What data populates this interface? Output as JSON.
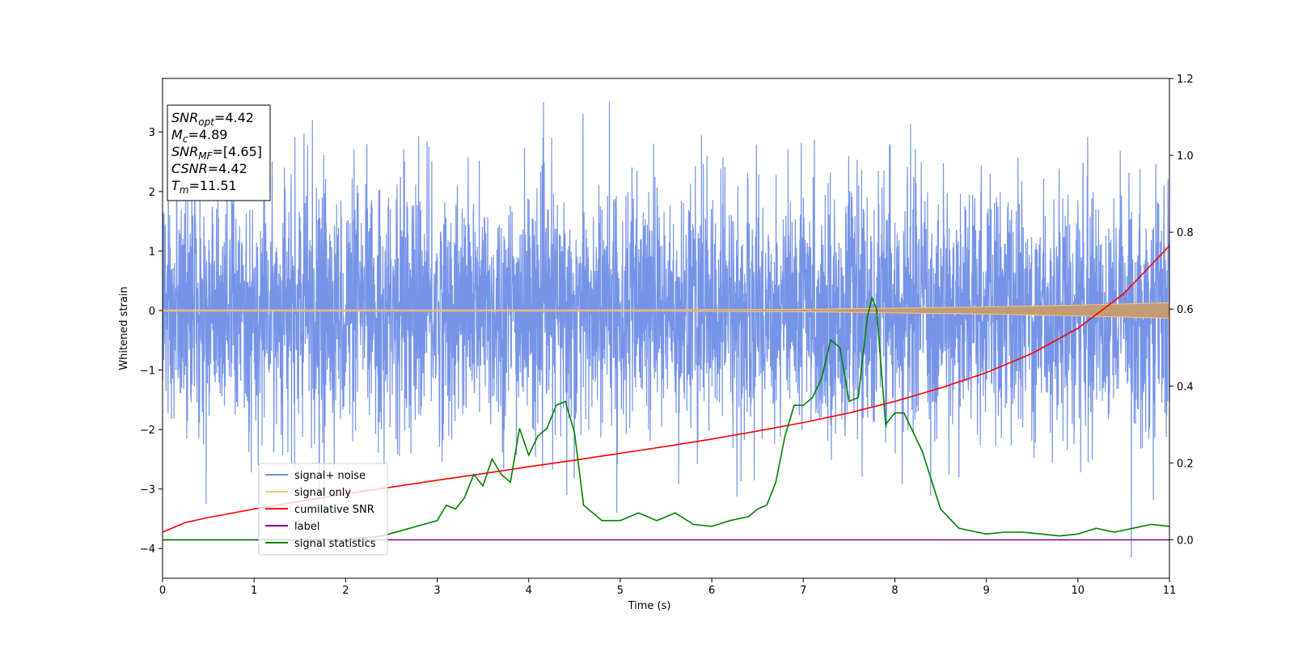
{
  "chart_data": {
    "type": "line",
    "xlabel": "Time (s)",
    "ylabel": "Whitened strain",
    "xlim": [
      0,
      11
    ],
    "ylim": [
      -4.5,
      3.9
    ],
    "y2lim": [
      -0.1,
      1.2
    ],
    "grid": false,
    "x_ticks": [
      "0",
      "1",
      "2",
      "3",
      "4",
      "5",
      "6",
      "7",
      "8",
      "9",
      "10",
      "11"
    ],
    "y_ticks": [
      "3",
      "2",
      "1",
      "0",
      "−1",
      "−2",
      "−3",
      "−4"
    ],
    "y2_ticks": [
      "1.2",
      "1.0",
      "0.8",
      "0.6",
      "0.4",
      "0.2",
      "0.0"
    ],
    "legend_position": "lower-left",
    "legend": [
      {
        "label": "signal+ noise",
        "color": "#6f8ee6"
      },
      {
        "label": "signal only",
        "color": "#f5c77e"
      },
      {
        "label": "cumilative SNR",
        "color": "#ff0000"
      },
      {
        "label": "label",
        "color": "#800080"
      },
      {
        "label": "signal statistics",
        "color": "#008000"
      }
    ],
    "info_box": [
      {
        "main": "SNR",
        "sub": "opt",
        "value": "=4.42"
      },
      {
        "main": "M",
        "sub": "c",
        "value": "=4.89"
      },
      {
        "main": "SNR",
        "sub": "MF",
        "value": "=[4.65]"
      },
      {
        "main": "CSNR",
        "sub": "",
        "value": "=4.42"
      },
      {
        "main": "T",
        "sub": "m",
        "value": "=11.51"
      }
    ],
    "series": [
      {
        "name": "signal+ noise",
        "axis": "left",
        "color": "#6f8ee6",
        "noise_band": {
          "mean": 0.0,
          "typical_abs": 1.6,
          "max": 3.5,
          "min": -4.15
        }
      },
      {
        "name": "signal only",
        "axis": "left",
        "color": "#f5c77e",
        "envelope": {
          "x": [
            0,
            5,
            7,
            8,
            9,
            10,
            11
          ],
          "amp": [
            0.01,
            0.01,
            0.02,
            0.04,
            0.06,
            0.09,
            0.13
          ]
        }
      },
      {
        "name": "cumilative SNR",
        "axis": "right",
        "color": "#ff0000",
        "x": [
          0,
          0.25,
          0.5,
          1,
          1.5,
          2,
          2.5,
          3,
          3.5,
          4,
          4.5,
          5,
          5.5,
          6,
          6.5,
          7,
          7.5,
          8,
          8.5,
          9,
          9.5,
          10,
          10.5,
          11
        ],
        "y": [
          0.02,
          0.045,
          0.058,
          0.08,
          0.1,
          0.12,
          0.137,
          0.155,
          0.172,
          0.19,
          0.207,
          0.225,
          0.243,
          0.262,
          0.283,
          0.305,
          0.33,
          0.36,
          0.395,
          0.435,
          0.485,
          0.55,
          0.64,
          0.765
        ]
      },
      {
        "name": "label",
        "axis": "right",
        "color": "#800080",
        "x": [
          0,
          11
        ],
        "y": [
          0.0,
          0.0
        ]
      },
      {
        "name": "signal statistics",
        "axis": "right",
        "color": "#008000",
        "x": [
          0,
          1,
          2,
          2.4,
          2.7,
          3.0,
          3.1,
          3.2,
          3.3,
          3.4,
          3.5,
          3.6,
          3.7,
          3.8,
          3.9,
          4.0,
          4.1,
          4.2,
          4.3,
          4.4,
          4.5,
          4.6,
          4.7,
          4.8,
          5.0,
          5.2,
          5.4,
          5.6,
          5.8,
          6.0,
          6.2,
          6.4,
          6.5,
          6.6,
          6.7,
          6.8,
          6.9,
          7.0,
          7.1,
          7.2,
          7.3,
          7.4,
          7.5,
          7.6,
          7.7,
          7.75,
          7.8,
          7.85,
          7.9,
          8.0,
          8.1,
          8.2,
          8.3,
          8.5,
          8.7,
          8.9,
          9.0,
          9.2,
          9.4,
          9.6,
          9.8,
          10.0,
          10.2,
          10.4,
          10.6,
          10.8,
          11.0
        ],
        "y": [
          0.0,
          0.0,
          0.0,
          0.01,
          0.03,
          0.05,
          0.09,
          0.08,
          0.11,
          0.17,
          0.14,
          0.21,
          0.17,
          0.15,
          0.29,
          0.22,
          0.27,
          0.29,
          0.35,
          0.36,
          0.28,
          0.09,
          0.07,
          0.05,
          0.05,
          0.07,
          0.05,
          0.07,
          0.04,
          0.035,
          0.05,
          0.06,
          0.08,
          0.09,
          0.15,
          0.27,
          0.35,
          0.35,
          0.37,
          0.42,
          0.52,
          0.5,
          0.36,
          0.37,
          0.58,
          0.63,
          0.6,
          0.45,
          0.3,
          0.33,
          0.33,
          0.28,
          0.23,
          0.08,
          0.03,
          0.02,
          0.015,
          0.02,
          0.02,
          0.015,
          0.01,
          0.015,
          0.03,
          0.02,
          0.03,
          0.04,
          0.035
        ]
      }
    ]
  }
}
